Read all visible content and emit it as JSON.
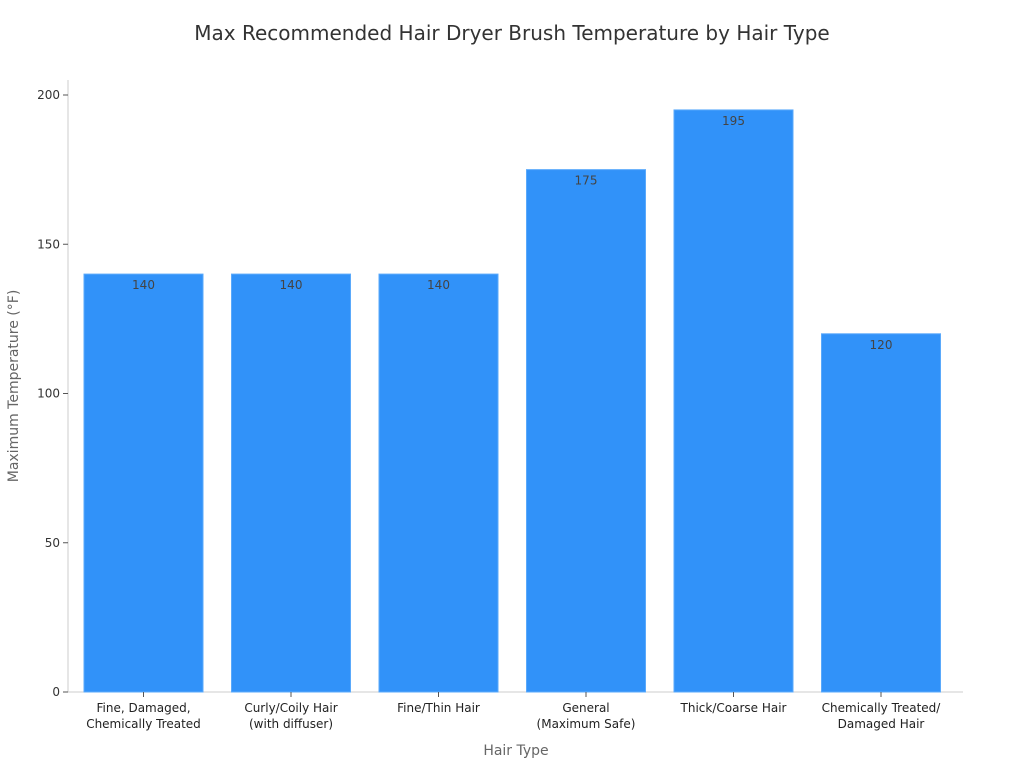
{
  "chart_data": {
    "type": "bar",
    "title": "Max Recommended Hair Dryer Brush Temperature by Hair Type",
    "xlabel": "Hair Type",
    "ylabel": "Maximum Temperature (°F)",
    "ylim": [
      0,
      205
    ],
    "yticks": [
      0,
      50,
      100,
      150,
      200
    ],
    "grid": false,
    "legend": "none",
    "bar_color": "#3192f9",
    "categories": [
      [
        "Fine, Damaged,",
        "Chemically Treated"
      ],
      [
        "Curly/Coily Hair",
        "(with diffuser)"
      ],
      [
        "Fine/Thin Hair"
      ],
      [
        "General",
        "(Maximum Safe)"
      ],
      [
        "Thick/Coarse Hair"
      ],
      [
        "Chemically Treated/",
        "Damaged Hair"
      ]
    ],
    "values": [
      140,
      140,
      140,
      175,
      195,
      120
    ]
  }
}
